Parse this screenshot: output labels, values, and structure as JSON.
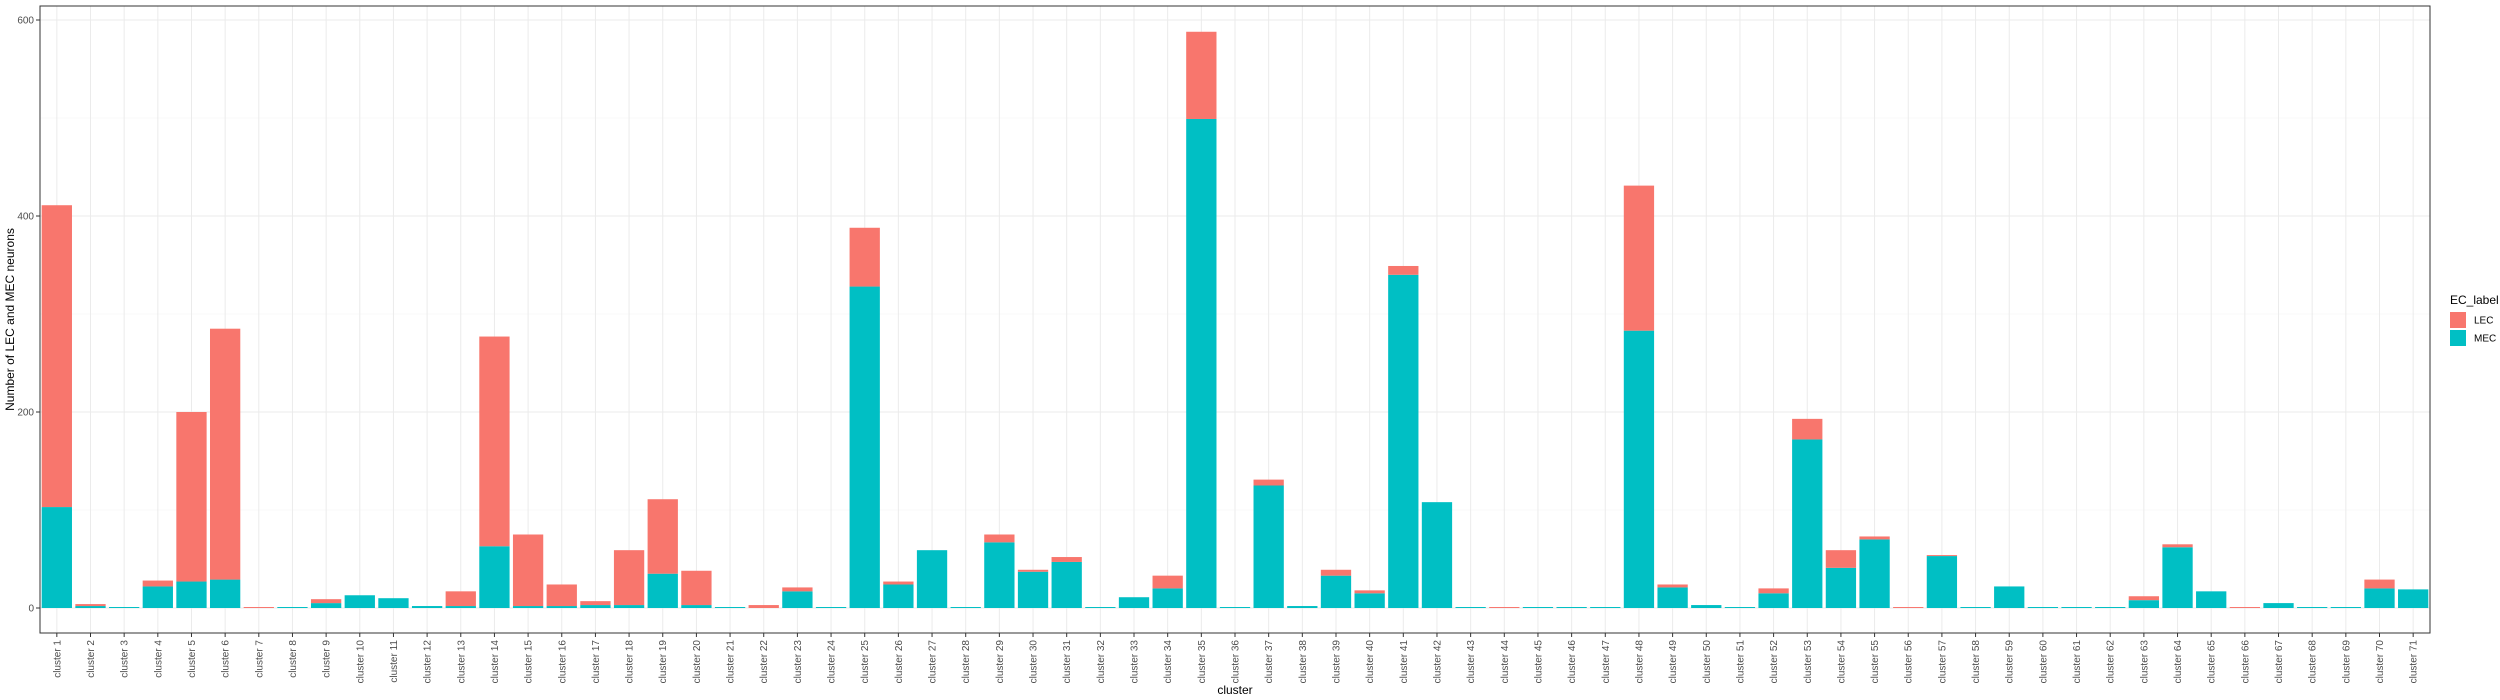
{
  "chart_data": {
    "type": "bar",
    "stacked": true,
    "xlabel": "cluster",
    "ylabel": "Number of LEC and MEC neurons",
    "ylim": [
      0,
      630
    ],
    "yticks": [
      0,
      200,
      400,
      600
    ],
    "grid": true,
    "legend": {
      "title": "EC_label",
      "position": "right"
    },
    "categories": [
      "cluster 1",
      "cluster 2",
      "cluster 3",
      "cluster 4",
      "cluster 5",
      "cluster 6",
      "cluster 7",
      "cluster 8",
      "cluster 9",
      "cluster 10",
      "cluster 11",
      "cluster 12",
      "cluster 13",
      "cluster 14",
      "cluster 15",
      "cluster 16",
      "cluster 17",
      "cluster 18",
      "cluster 19",
      "cluster 20",
      "cluster 21",
      "cluster 22",
      "cluster 23",
      "cluster 24",
      "cluster 25",
      "cluster 26",
      "cluster 27",
      "cluster 28",
      "cluster 29",
      "cluster 30",
      "cluster 31",
      "cluster 32",
      "cluster 33",
      "cluster 34",
      "cluster 35",
      "cluster 36",
      "cluster 37",
      "cluster 38",
      "cluster 39",
      "cluster 40",
      "cluster 41",
      "cluster 42",
      "cluster 43",
      "cluster 44",
      "cluster 45",
      "cluster 46",
      "cluster 47",
      "cluster 48",
      "cluster 49",
      "cluster 50",
      "cluster 51",
      "cluster 52",
      "cluster 53",
      "cluster 54",
      "cluster 55",
      "cluster 56",
      "cluster 57",
      "cluster 58",
      "cluster 59",
      "cluster 60",
      "cluster 61",
      "cluster 62",
      "cluster 63",
      "cluster 64",
      "cluster 65",
      "cluster 66",
      "cluster 67",
      "cluster 68",
      "cluster 69",
      "cluster 70",
      "cluster 71"
    ],
    "series": [
      {
        "name": "MEC",
        "color": "#00BFC4",
        "values": [
          103,
          2,
          1,
          22,
          27,
          29,
          0,
          1,
          5,
          13,
          10,
          2,
          2,
          63,
          2,
          2,
          3,
          3,
          35,
          3,
          1,
          0,
          17,
          1,
          328,
          24,
          59,
          1,
          67,
          37,
          47,
          1,
          11,
          20,
          499,
          1,
          125,
          2,
          33,
          15,
          340,
          108,
          1,
          0,
          1,
          1,
          1,
          283,
          21,
          3,
          1,
          15,
          172,
          41,
          70,
          0,
          53,
          1,
          22,
          1,
          1,
          1,
          8,
          62,
          17,
          0,
          5,
          1,
          1,
          20,
          19
        ]
      },
      {
        "name": "LEC",
        "color": "#F8766D",
        "values": [
          308,
          2,
          0,
          6,
          173,
          256,
          1,
          0,
          4,
          0,
          0,
          0,
          15,
          214,
          73,
          22,
          4,
          56,
          76,
          35,
          0,
          3,
          4,
          0,
          60,
          3,
          0,
          0,
          8,
          2,
          5,
          0,
          0,
          13,
          89,
          0,
          6,
          0,
          6,
          3,
          9,
          0,
          0,
          1,
          0,
          0,
          0,
          148,
          3,
          0,
          0,
          5,
          21,
          18,
          3,
          1,
          1,
          0,
          0,
          0,
          0,
          0,
          4,
          3,
          0,
          1,
          0,
          0,
          0,
          9,
          0
        ]
      }
    ]
  }
}
